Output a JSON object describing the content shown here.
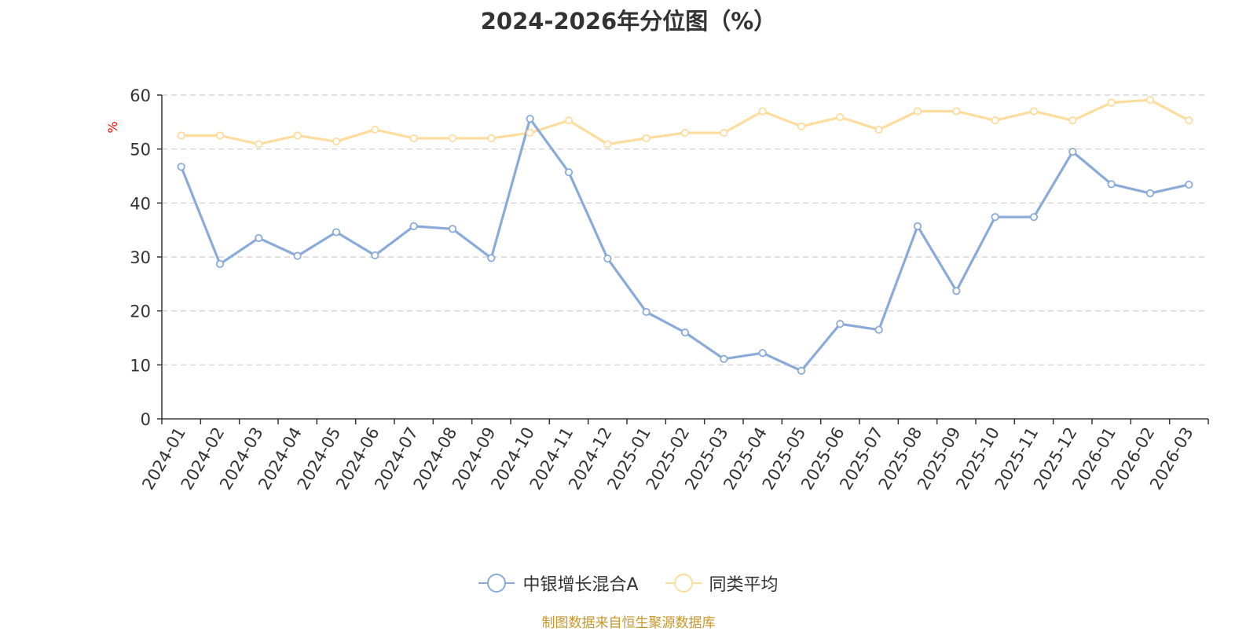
{
  "chart_data": {
    "type": "line",
    "title": "2024-2026年分位图（%）",
    "ylabel": "%",
    "xlabel": "",
    "ylim": [
      0,
      60
    ],
    "yticks": [
      0,
      10,
      20,
      30,
      40,
      50,
      60
    ],
    "grid": true,
    "legend_position": "bottom",
    "categories": [
      "2024-01",
      "2024-02",
      "2024-03",
      "2024-04",
      "2024-05",
      "2024-06",
      "2024-07",
      "2024-08",
      "2024-09",
      "2024-10",
      "2024-11",
      "2024-12",
      "2025-01",
      "2025-02",
      "2025-03",
      "2025-04",
      "2025-05",
      "2025-06",
      "2025-07",
      "2025-08",
      "2025-09",
      "2025-10",
      "2025-11",
      "2025-12",
      "2026-01",
      "2026-02",
      "2026-03"
    ],
    "series": [
      {
        "name": "中银增长混合A",
        "color": "#8aabd9",
        "values": [
          46.7,
          28.7,
          33.5,
          30.2,
          34.6,
          30.3,
          35.7,
          35.2,
          29.8,
          55.6,
          45.7,
          29.7,
          19.8,
          16.0,
          11.1,
          12.2,
          8.9,
          17.6,
          16.5,
          35.7,
          23.7,
          37.4,
          37.4,
          49.5,
          43.5,
          41.8,
          43.4
        ]
      },
      {
        "name": "同类平均",
        "color": "#fddc9d",
        "values": [
          52.5,
          52.5,
          50.9,
          52.5,
          51.4,
          53.6,
          52.0,
          52.0,
          52.0,
          53.0,
          55.3,
          50.9,
          52.0,
          53.0,
          53.0,
          57.0,
          54.2,
          55.9,
          53.6,
          57.0,
          57.0,
          55.3,
          57.0,
          55.3,
          58.6,
          59.1,
          55.3
        ]
      }
    ]
  },
  "source": "制图数据来自恒生聚源数据库",
  "colors": {
    "title": "#333333",
    "axis": "#333333",
    "grid": "#cccccc",
    "ylabel": "#ff0000",
    "source": "#c8962a"
  }
}
